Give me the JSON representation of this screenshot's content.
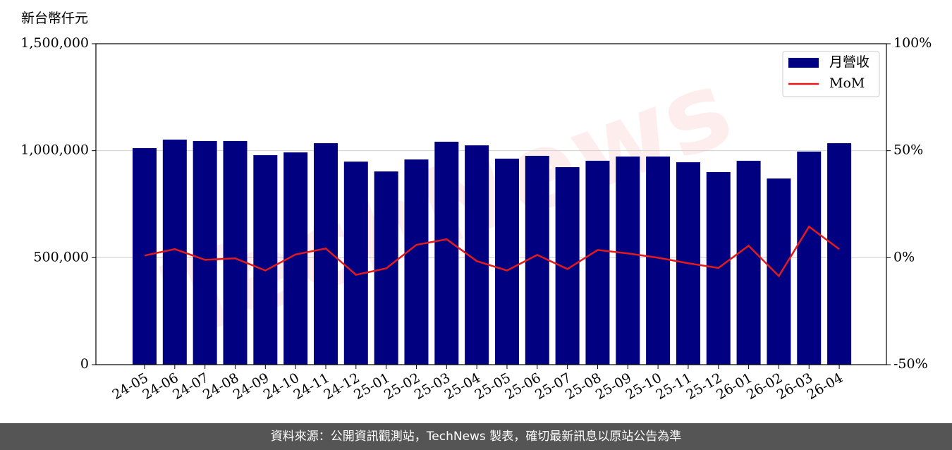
{
  "chart_data": {
    "type": "bar_line",
    "y_label": "新台幣仟元",
    "watermark": "TechNews",
    "categories": [
      "24-05",
      "24-06",
      "24-07",
      "24-08",
      "24-09",
      "24-10",
      "24-11",
      "24-12",
      "25-01",
      "25-02",
      "25-03",
      "25-04",
      "25-05",
      "25-06",
      "25-07",
      "25-08",
      "25-09",
      "25-10",
      "25-11",
      "25-12",
      "26-01",
      "26-02",
      "26-03",
      "26-04"
    ],
    "series": [
      {
        "name": "月營收",
        "color": "#000080",
        "type": "bar",
        "values": [
          1012000,
          1052000,
          1045000,
          1045000,
          979000,
          992000,
          1035000,
          949000,
          903000,
          959000,
          1042000,
          1025000,
          963000,
          976000,
          923000,
          953000,
          973000,
          973000,
          946000,
          900000,
          953000,
          870000,
          996000,
          1035000
        ]
      },
      {
        "name": "MoM",
        "color": "#e31a1c",
        "type": "line",
        "axis": "y2",
        "values": [
          1,
          4,
          -1,
          -0.3,
          -6,
          1.5,
          4.3,
          -8,
          -5,
          6,
          8.6,
          -1.6,
          -6,
          1.3,
          -5.3,
          3.6,
          2,
          0,
          -2.6,
          -4.8,
          5.6,
          -8.6,
          14.5,
          4
        ]
      }
    ],
    "ylim": [
      0,
      1500000
    ],
    "yticks": [
      0,
      {
        "value": 500000,
        "label": "500,000"
      },
      {
        "value": 1000000,
        "label": "1,000,000"
      },
      {
        "value": 1500000,
        "label": "1,500,000"
      }
    ],
    "y2lim": [
      -50,
      100
    ],
    "y2ticks": [
      {
        "value": -50,
        "label": "-50%"
      },
      {
        "value": 0,
        "label": "0%"
      },
      {
        "value": 50,
        "label": "50%"
      },
      {
        "value": 100,
        "label": "100%"
      }
    ],
    "grid": true,
    "legend": "upper right"
  },
  "footer": "資料來源：公開資訊觀測站，TechNews 製表，確切最新訊息以原站公告為準"
}
